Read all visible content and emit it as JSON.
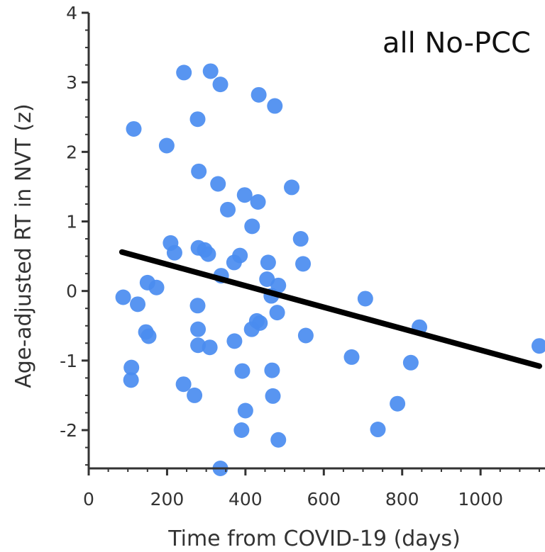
{
  "chart_data": {
    "type": "scatter",
    "xlabel": "Time from COVID-19 (days)",
    "ylabel": "Age-adjusted RT in NVT (z)",
    "annotation": "all No-PCC",
    "xlim": [
      0,
      1150
    ],
    "ylim": [
      -2.55,
      4
    ],
    "x_ticks": [
      0,
      200,
      400,
      600,
      800,
      1000
    ],
    "y_ticks": [
      -2,
      -1,
      0,
      1,
      2,
      3,
      4
    ],
    "x_tick_labels": [
      "0",
      "200",
      "400",
      "600",
      "800",
      "1000"
    ],
    "y_tick_labels": [
      "-2",
      "-1",
      "0",
      "1",
      "2",
      "3",
      "4"
    ],
    "grid": false,
    "colors": {
      "points": "#4a8cf0",
      "fit_line": "#000000",
      "axes": "#333333"
    },
    "series": [
      {
        "values": [
          {
            "x": 243,
            "y": 3.14
          },
          {
            "x": 311,
            "y": 3.16
          },
          {
            "x": 336,
            "y": 2.97
          },
          {
            "x": 434,
            "y": 2.82
          },
          {
            "x": 475,
            "y": 2.66
          },
          {
            "x": 278,
            "y": 2.47
          },
          {
            "x": 115,
            "y": 2.33
          },
          {
            "x": 199,
            "y": 2.09
          },
          {
            "x": 281,
            "y": 1.72
          },
          {
            "x": 330,
            "y": 1.54
          },
          {
            "x": 518,
            "y": 1.49
          },
          {
            "x": 398,
            "y": 1.38
          },
          {
            "x": 432,
            "y": 1.28
          },
          {
            "x": 355,
            "y": 1.17
          },
          {
            "x": 417,
            "y": 0.93
          },
          {
            "x": 541,
            "y": 0.75
          },
          {
            "x": 209,
            "y": 0.69
          },
          {
            "x": 219,
            "y": 0.55
          },
          {
            "x": 280,
            "y": 0.62
          },
          {
            "x": 296,
            "y": 0.59
          },
          {
            "x": 305,
            "y": 0.53
          },
          {
            "x": 386,
            "y": 0.51
          },
          {
            "x": 371,
            "y": 0.41
          },
          {
            "x": 458,
            "y": 0.41
          },
          {
            "x": 547,
            "y": 0.39
          },
          {
            "x": 338,
            "y": 0.22
          },
          {
            "x": 455,
            "y": 0.17
          },
          {
            "x": 484,
            "y": 0.08
          },
          {
            "x": 150,
            "y": 0.12
          },
          {
            "x": 173,
            "y": 0.05
          },
          {
            "x": 466,
            "y": -0.07
          },
          {
            "x": 88,
            "y": -0.09
          },
          {
            "x": 125,
            "y": -0.19
          },
          {
            "x": 278,
            "y": -0.21
          },
          {
            "x": 481,
            "y": -0.31
          },
          {
            "x": 706,
            "y": -0.11
          },
          {
            "x": 429,
            "y": -0.43
          },
          {
            "x": 437,
            "y": -0.46
          },
          {
            "x": 416,
            "y": -0.55
          },
          {
            "x": 279,
            "y": -0.55
          },
          {
            "x": 146,
            "y": -0.59
          },
          {
            "x": 153,
            "y": -0.65
          },
          {
            "x": 554,
            "y": -0.64
          },
          {
            "x": 844,
            "y": -0.52
          },
          {
            "x": 372,
            "y": -0.72
          },
          {
            "x": 279,
            "y": -0.78
          },
          {
            "x": 309,
            "y": -0.81
          },
          {
            "x": 1150,
            "y": -0.79
          },
          {
            "x": 671,
            "y": -0.95
          },
          {
            "x": 822,
            "y": -1.03
          },
          {
            "x": 109,
            "y": -1.1
          },
          {
            "x": 392,
            "y": -1.15
          },
          {
            "x": 468,
            "y": -1.14
          },
          {
            "x": 108,
            "y": -1.28
          },
          {
            "x": 242,
            "y": -1.34
          },
          {
            "x": 270,
            "y": -1.5
          },
          {
            "x": 470,
            "y": -1.51
          },
          {
            "x": 788,
            "y": -1.62
          },
          {
            "x": 400,
            "y": -1.72
          },
          {
            "x": 390,
            "y": -2.0
          },
          {
            "x": 738,
            "y": -1.99
          },
          {
            "x": 484,
            "y": -2.14
          },
          {
            "x": 336,
            "y": -2.55
          }
        ]
      }
    ],
    "fit_line": {
      "x": [
        85,
        1150
      ],
      "y": [
        0.56,
        -1.08
      ]
    }
  }
}
